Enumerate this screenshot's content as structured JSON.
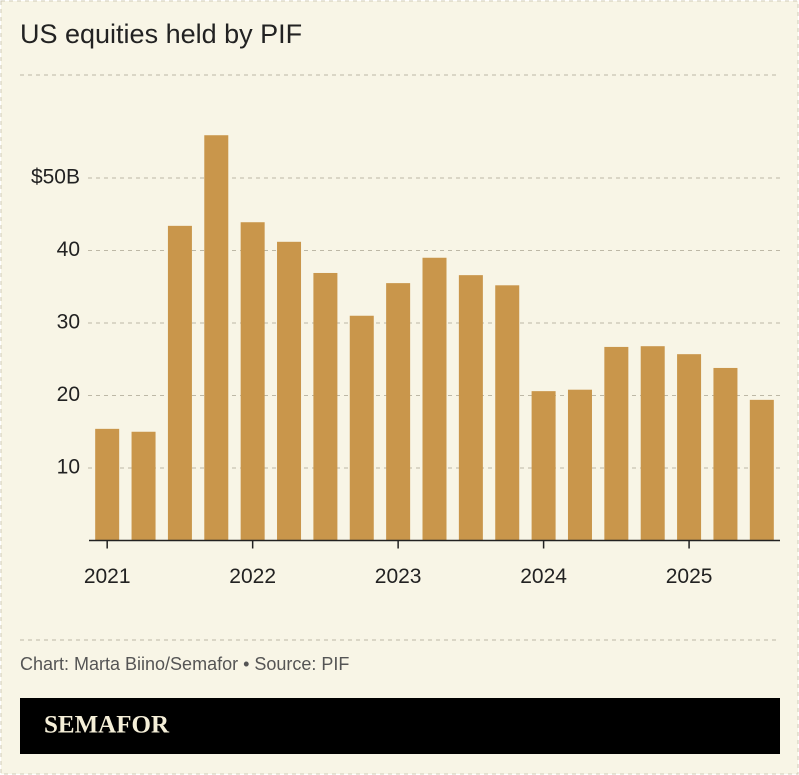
{
  "chart_data": {
    "type": "bar",
    "title": "US equities held by PIF",
    "categories": [
      "2021",
      null,
      null,
      null,
      "2022",
      null,
      null,
      null,
      "2023",
      null,
      null,
      null,
      "2024",
      null,
      null,
      null,
      "2025",
      null,
      null
    ],
    "values": [
      15.4,
      15.0,
      43.4,
      55.9,
      43.9,
      41.2,
      36.9,
      31.0,
      35.5,
      39.0,
      36.6,
      35.2,
      20.6,
      20.8,
      26.7,
      26.8,
      25.7,
      23.8,
      19.4
    ],
    "color": "#c9964b",
    "ylim": [
      0,
      60
    ],
    "yticks": [
      10,
      20,
      30,
      40,
      {
        "value": 50,
        "label": "$50B"
      }
    ],
    "grid": true,
    "source": "Chart: Marta Biino/Semafor • Source: PIF",
    "brand": "SEMAFOR"
  }
}
